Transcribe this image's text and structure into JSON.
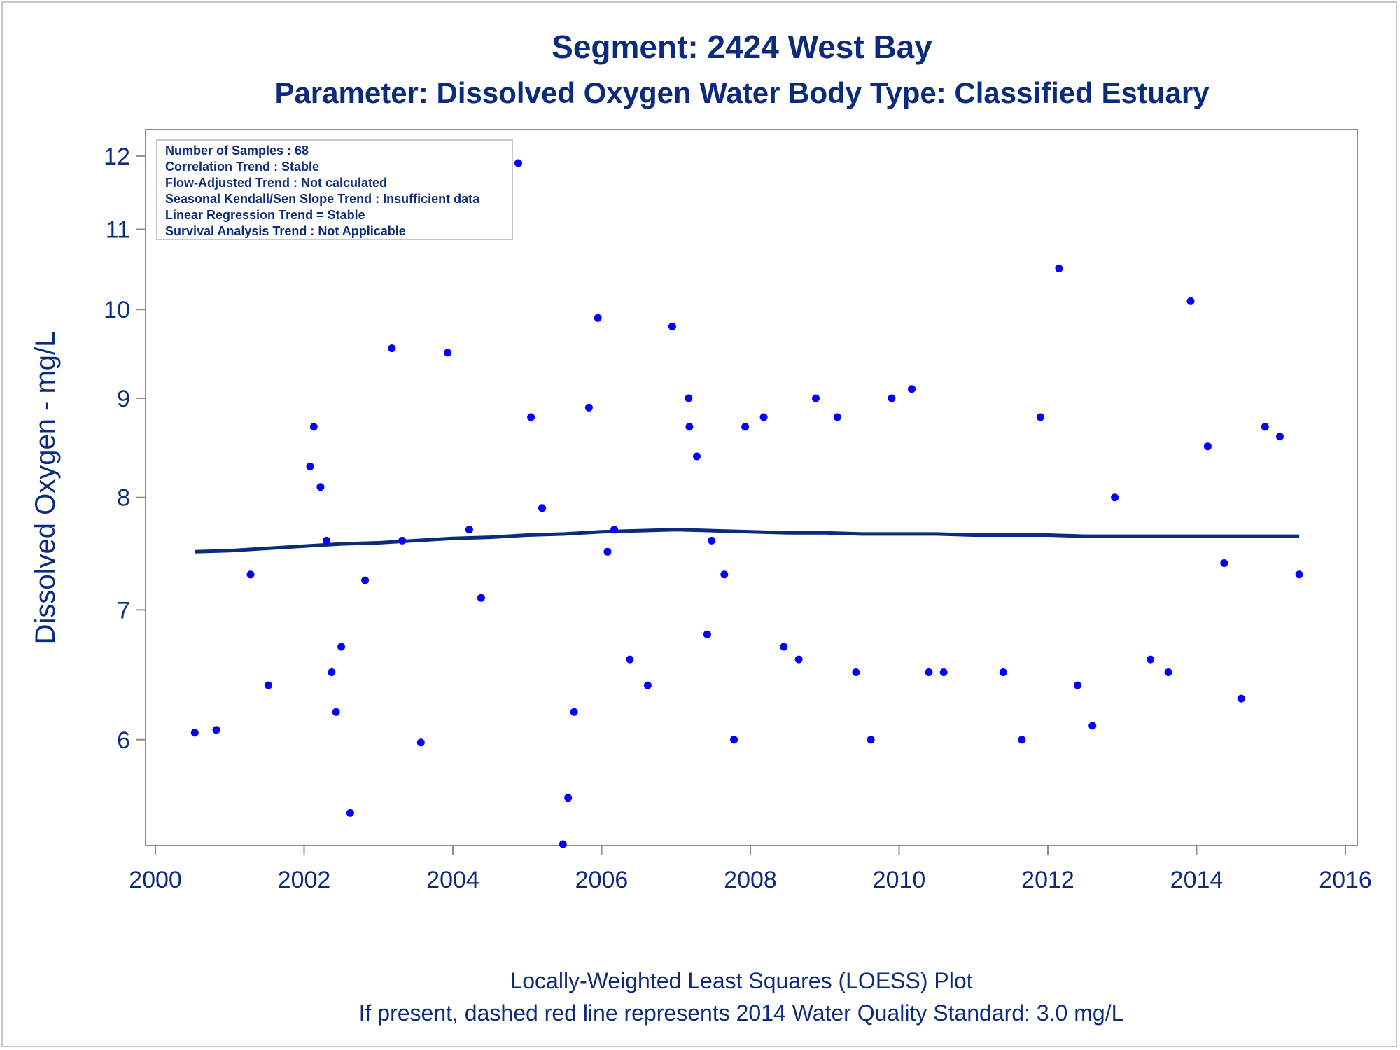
{
  "chart_data": {
    "type": "scatter",
    "title": "Segment: 2424  West Bay",
    "subtitle": "Parameter: Dissolved Oxygen   Water Body Type: Classified Estuary",
    "xlabel": "",
    "ylabel": "Dissolved Oxygen - mg/L",
    "xlim": [
      2000,
      2016
    ],
    "ylim": [
      5.3,
      12.2
    ],
    "y_scale": "log",
    "grid": false,
    "x_ticks": [
      "2000",
      "2002",
      "2004",
      "2006",
      "2008",
      "2010",
      "2012",
      "2014",
      "2016"
    ],
    "y_ticks": [
      "6",
      "7",
      "8",
      "9",
      "10",
      "11",
      "12"
    ],
    "inset_box": {
      "position": "top-left",
      "lines": [
        "Number of Samples : 68",
        "Correlation Trend : Stable",
        "Flow-Adjusted Trend : Not calculated",
        "Seasonal Kendall/Sen Slope Trend : Insufficient data",
        "Linear Regression Trend = Stable",
        "Survival Analysis Trend : Not Applicable"
      ]
    },
    "colors": {
      "points": "#0000ff",
      "loess": "#0c2b7a",
      "text": "#0c2b7a",
      "axis": "#8c8c8c"
    },
    "series": [
      {
        "kind": "points",
        "x": [
          2000.53,
          2000.82,
          2001.07,
          2001.28,
          2001.52,
          2002.08,
          2002.13,
          2002.22,
          2002.3,
          2002.37,
          2002.43,
          2002.5,
          2002.62,
          2002.82,
          2003.18,
          2003.32,
          2003.57,
          2003.93,
          2004.22,
          2004.38,
          2004.88,
          2005.05,
          2005.2,
          2005.48,
          2005.55,
          2005.63,
          2005.83,
          2005.95,
          2006.08,
          2006.17,
          2006.38,
          2006.62,
          2006.95,
          2007.17,
          2007.18,
          2007.28,
          2007.42,
          2007.48,
          2007.65,
          2007.78,
          2007.93,
          2008.18,
          2008.45,
          2008.65,
          2008.88,
          2009.17,
          2009.42,
          2009.62,
          2009.9,
          2010.17,
          2010.4,
          2010.6,
          2011.4,
          2011.65,
          2011.9,
          2012.15,
          2012.4,
          2012.6,
          2012.9,
          2013.38,
          2013.62,
          2013.92,
          2014.15,
          2014.37,
          2014.6,
          2014.92,
          2015.12,
          2015.38
        ],
        "y": [
          6.05,
          6.07,
          11.4,
          7.3,
          6.4,
          8.3,
          8.7,
          8.1,
          7.6,
          6.5,
          6.2,
          6.7,
          5.5,
          7.25,
          9.55,
          7.6,
          5.98,
          9.5,
          7.7,
          7.1,
          11.9,
          8.8,
          7.9,
          5.3,
          5.6,
          6.2,
          8.9,
          9.9,
          7.5,
          7.7,
          6.6,
          6.4,
          9.8,
          9.0,
          8.7,
          8.4,
          6.8,
          7.6,
          7.3,
          6.0,
          8.7,
          8.8,
          6.7,
          6.6,
          9.0,
          8.8,
          6.5,
          6.0,
          9.0,
          9.1,
          6.5,
          6.5,
          6.5,
          6.0,
          8.8,
          10.5,
          6.4,
          6.1,
          8.0,
          6.6,
          6.5,
          10.1,
          8.5,
          7.4,
          6.3,
          8.7,
          8.6,
          7.3
        ]
      },
      {
        "kind": "loess",
        "x": [
          2000.53,
          2001.0,
          2001.5,
          2002.0,
          2002.5,
          2003.0,
          2003.5,
          2004.0,
          2004.5,
          2005.0,
          2005.5,
          2006.0,
          2006.5,
          2007.0,
          2007.5,
          2008.0,
          2008.5,
          2009.0,
          2009.5,
          2010.0,
          2010.5,
          2011.0,
          2011.5,
          2012.0,
          2012.5,
          2013.0,
          2013.5,
          2014.0,
          2014.5,
          2015.0,
          2015.38
        ],
        "y": [
          7.5,
          7.51,
          7.53,
          7.55,
          7.57,
          7.58,
          7.6,
          7.62,
          7.63,
          7.65,
          7.66,
          7.68,
          7.69,
          7.7,
          7.69,
          7.68,
          7.67,
          7.67,
          7.66,
          7.66,
          7.66,
          7.65,
          7.65,
          7.65,
          7.64,
          7.64,
          7.64,
          7.64,
          7.64,
          7.64,
          7.64
        ]
      }
    ]
  },
  "footnotes": {
    "line1": "Locally-Weighted Least Squares (LOESS) Plot",
    "line2": "If present, dashed red line represents 2014 Water Quality Standard: 3.0 mg/L"
  }
}
